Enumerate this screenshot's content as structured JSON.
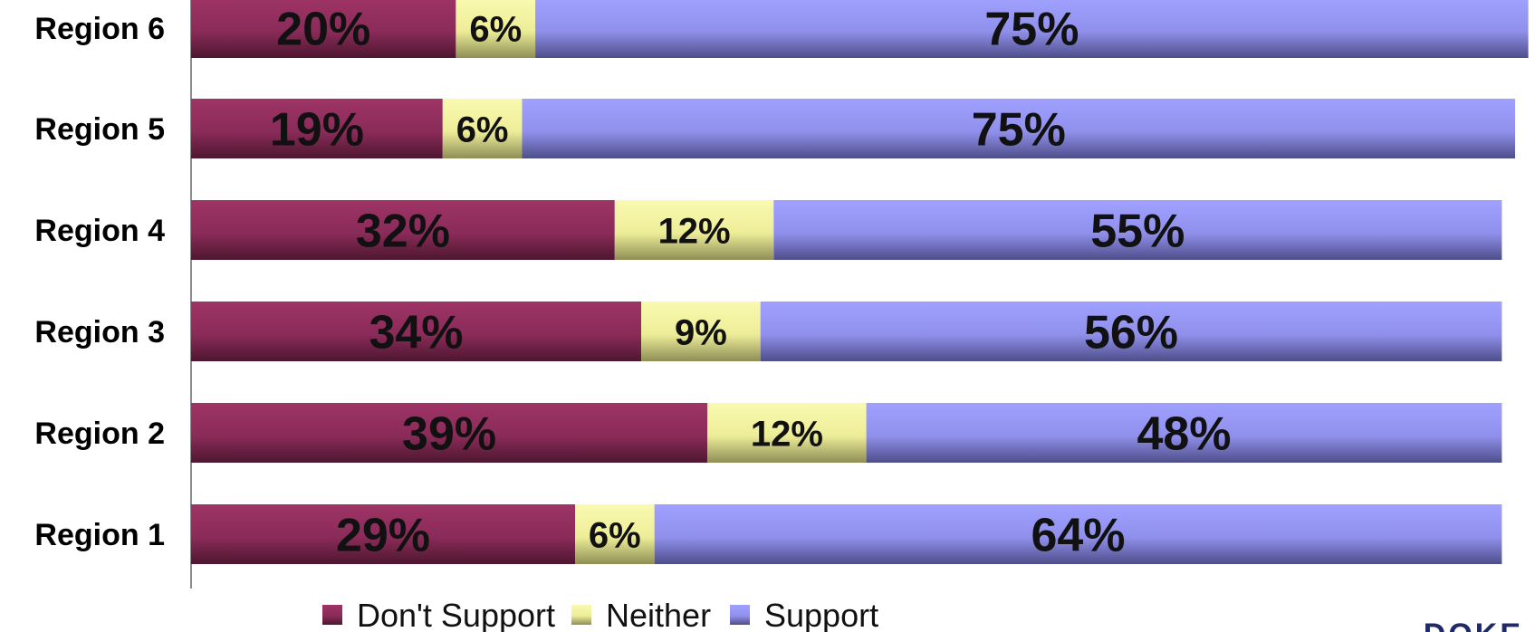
{
  "chart_data": {
    "type": "bar",
    "orientation": "horizontal",
    "stacked": true,
    "categories": [
      "Region 6",
      "Region 5",
      "Region 4",
      "Region 3",
      "Region 2",
      "Region 1"
    ],
    "series": [
      {
        "name": "Don't Support",
        "values": [
          20,
          19,
          32,
          34,
          39,
          29
        ],
        "labels": [
          "20%",
          "19%",
          "32%",
          "34%",
          "39%",
          "29%"
        ]
      },
      {
        "name": "Neither",
        "values": [
          6,
          6,
          12,
          9,
          12,
          6
        ],
        "labels": [
          "6%",
          "6%",
          "12%",
          "9%",
          "12%",
          "6%"
        ]
      },
      {
        "name": "Support",
        "values": [
          75,
          75,
          55,
          56,
          48,
          64
        ],
        "labels": [
          "75%",
          "75%",
          "55%",
          "56%",
          "48%",
          "64%"
        ]
      }
    ],
    "xlim": [
      0,
      100
    ],
    "grid": false,
    "legend_position": "bottom"
  },
  "colors": {
    "Don't Support": "#8e2d5c",
    "Neither": "#f3f3a0",
    "Support": "#9a9af5"
  },
  "watermark": "DOKE"
}
